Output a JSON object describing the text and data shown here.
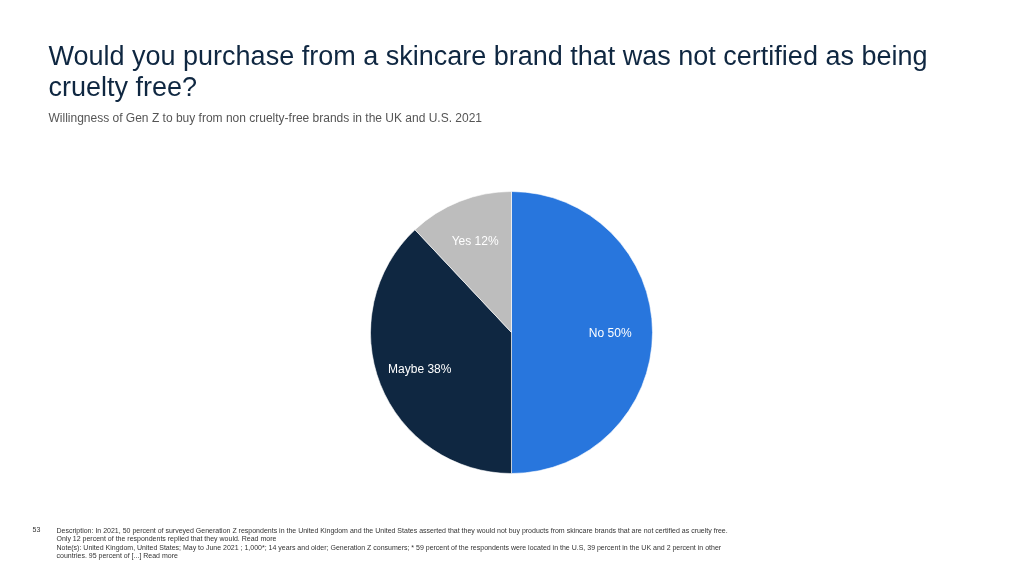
{
  "chart_data": {
    "type": "pie",
    "title": "Would you purchase from a skincare brand that was not certified as being cruelty free?",
    "subtitle": "Willingness of Gen Z to buy from non cruelty-free brands in the UK and U.S. 2021",
    "categories": [
      "No",
      "Maybe",
      "Yes"
    ],
    "values": [
      50,
      38,
      12
    ],
    "colors": [
      "#2876dd",
      "#0f2741",
      "#bdbdbd"
    ],
    "value_labels": [
      "50%",
      "38%",
      "12%"
    ],
    "annotations": [
      "53",
      "Description: In 2021, 50 percent of surveyed Generation Z respondents in the United Kingdom and the United States asserted that they would not buy products from skincare brands that are not certified as cruelty free. Only 12 percent of the respondents replied that they would. Read more",
      "Note(s): United Kingdom, United States; May to June 2021 ; 1,000*; 14 years and older; Generation Z consumers; * 59 percent of the respondents were located in the U.S, 39 percent in the UK and 2 percent in other countries. 95 percent of [...] Read more"
    ]
  }
}
